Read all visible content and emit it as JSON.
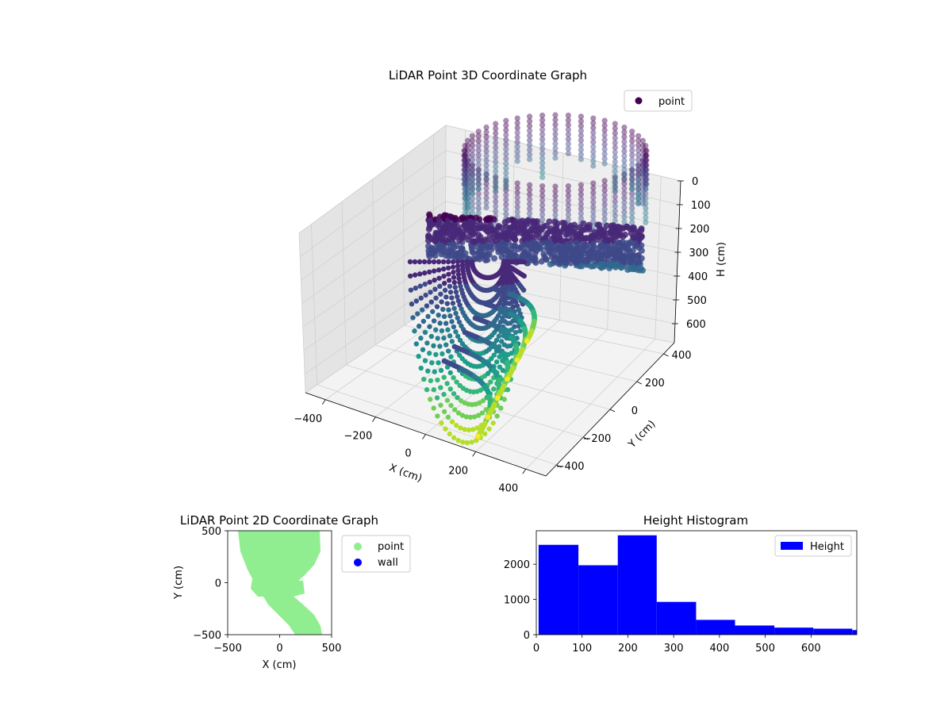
{
  "chart_data": [
    {
      "type": "scatter",
      "projection": "3d",
      "title": "LiDAR Point 3D Coordinate Graph",
      "xlabel": "X (cm)",
      "ylabel": "Y (cm)",
      "zlabel": "H (cm)",
      "xticks": [
        -400,
        -200,
        0,
        200,
        400
      ],
      "yticks": [
        -400,
        -200,
        0,
        200,
        400
      ],
      "zticks": [
        0,
        100,
        200,
        300,
        400,
        500,
        600
      ],
      "xlim": [
        -480,
        480
      ],
      "ylim": [
        -480,
        480
      ],
      "zlim": [
        0,
        680
      ],
      "z_inverted": true,
      "colormap": "viridis",
      "legend": {
        "position": "top-right",
        "entries": [
          {
            "name": "point",
            "color": "#440154"
          }
        ]
      },
      "grid": true
    },
    {
      "type": "scatter",
      "title": "LiDAR Point 2D Coordinate Graph",
      "xlabel": "X (cm)",
      "ylabel": "Y (cm)",
      "xticks": [
        -500,
        0,
        500
      ],
      "yticks": [
        -500,
        0,
        500
      ],
      "xlim": [
        -500,
        500
      ],
      "ylim": [
        -500,
        500
      ],
      "legend": {
        "position": "outside-right",
        "entries": [
          {
            "name": "point",
            "color": "#90ee90"
          },
          {
            "name": "wall",
            "color": "#0000ff"
          }
        ]
      },
      "grid": false
    },
    {
      "type": "bar",
      "title": "Height Histogram",
      "xticks": [
        0,
        100,
        200,
        300,
        400,
        500,
        600
      ],
      "yticks": [
        0,
        1000,
        2000
      ],
      "xlim": [
        0,
        700
      ],
      "ylim": [
        0,
        2950
      ],
      "bins": [
        {
          "start": 5,
          "end": 92,
          "value": 2550
        },
        {
          "start": 92,
          "end": 178,
          "value": 1970
        },
        {
          "start": 178,
          "end": 263,
          "value": 2820
        },
        {
          "start": 263,
          "end": 349,
          "value": 930
        },
        {
          "start": 349,
          "end": 434,
          "value": 420
        },
        {
          "start": 434,
          "end": 520,
          "value": 260
        },
        {
          "start": 520,
          "end": 605,
          "value": 200
        },
        {
          "start": 605,
          "end": 690,
          "value": 170
        },
        {
          "start": 690,
          "end": 700,
          "value": 130
        }
      ],
      "color": "#0000ff",
      "legend": {
        "position": "top-right",
        "entries": [
          {
            "name": "Height",
            "color": "#0000ff"
          }
        ]
      },
      "grid": false
    }
  ]
}
